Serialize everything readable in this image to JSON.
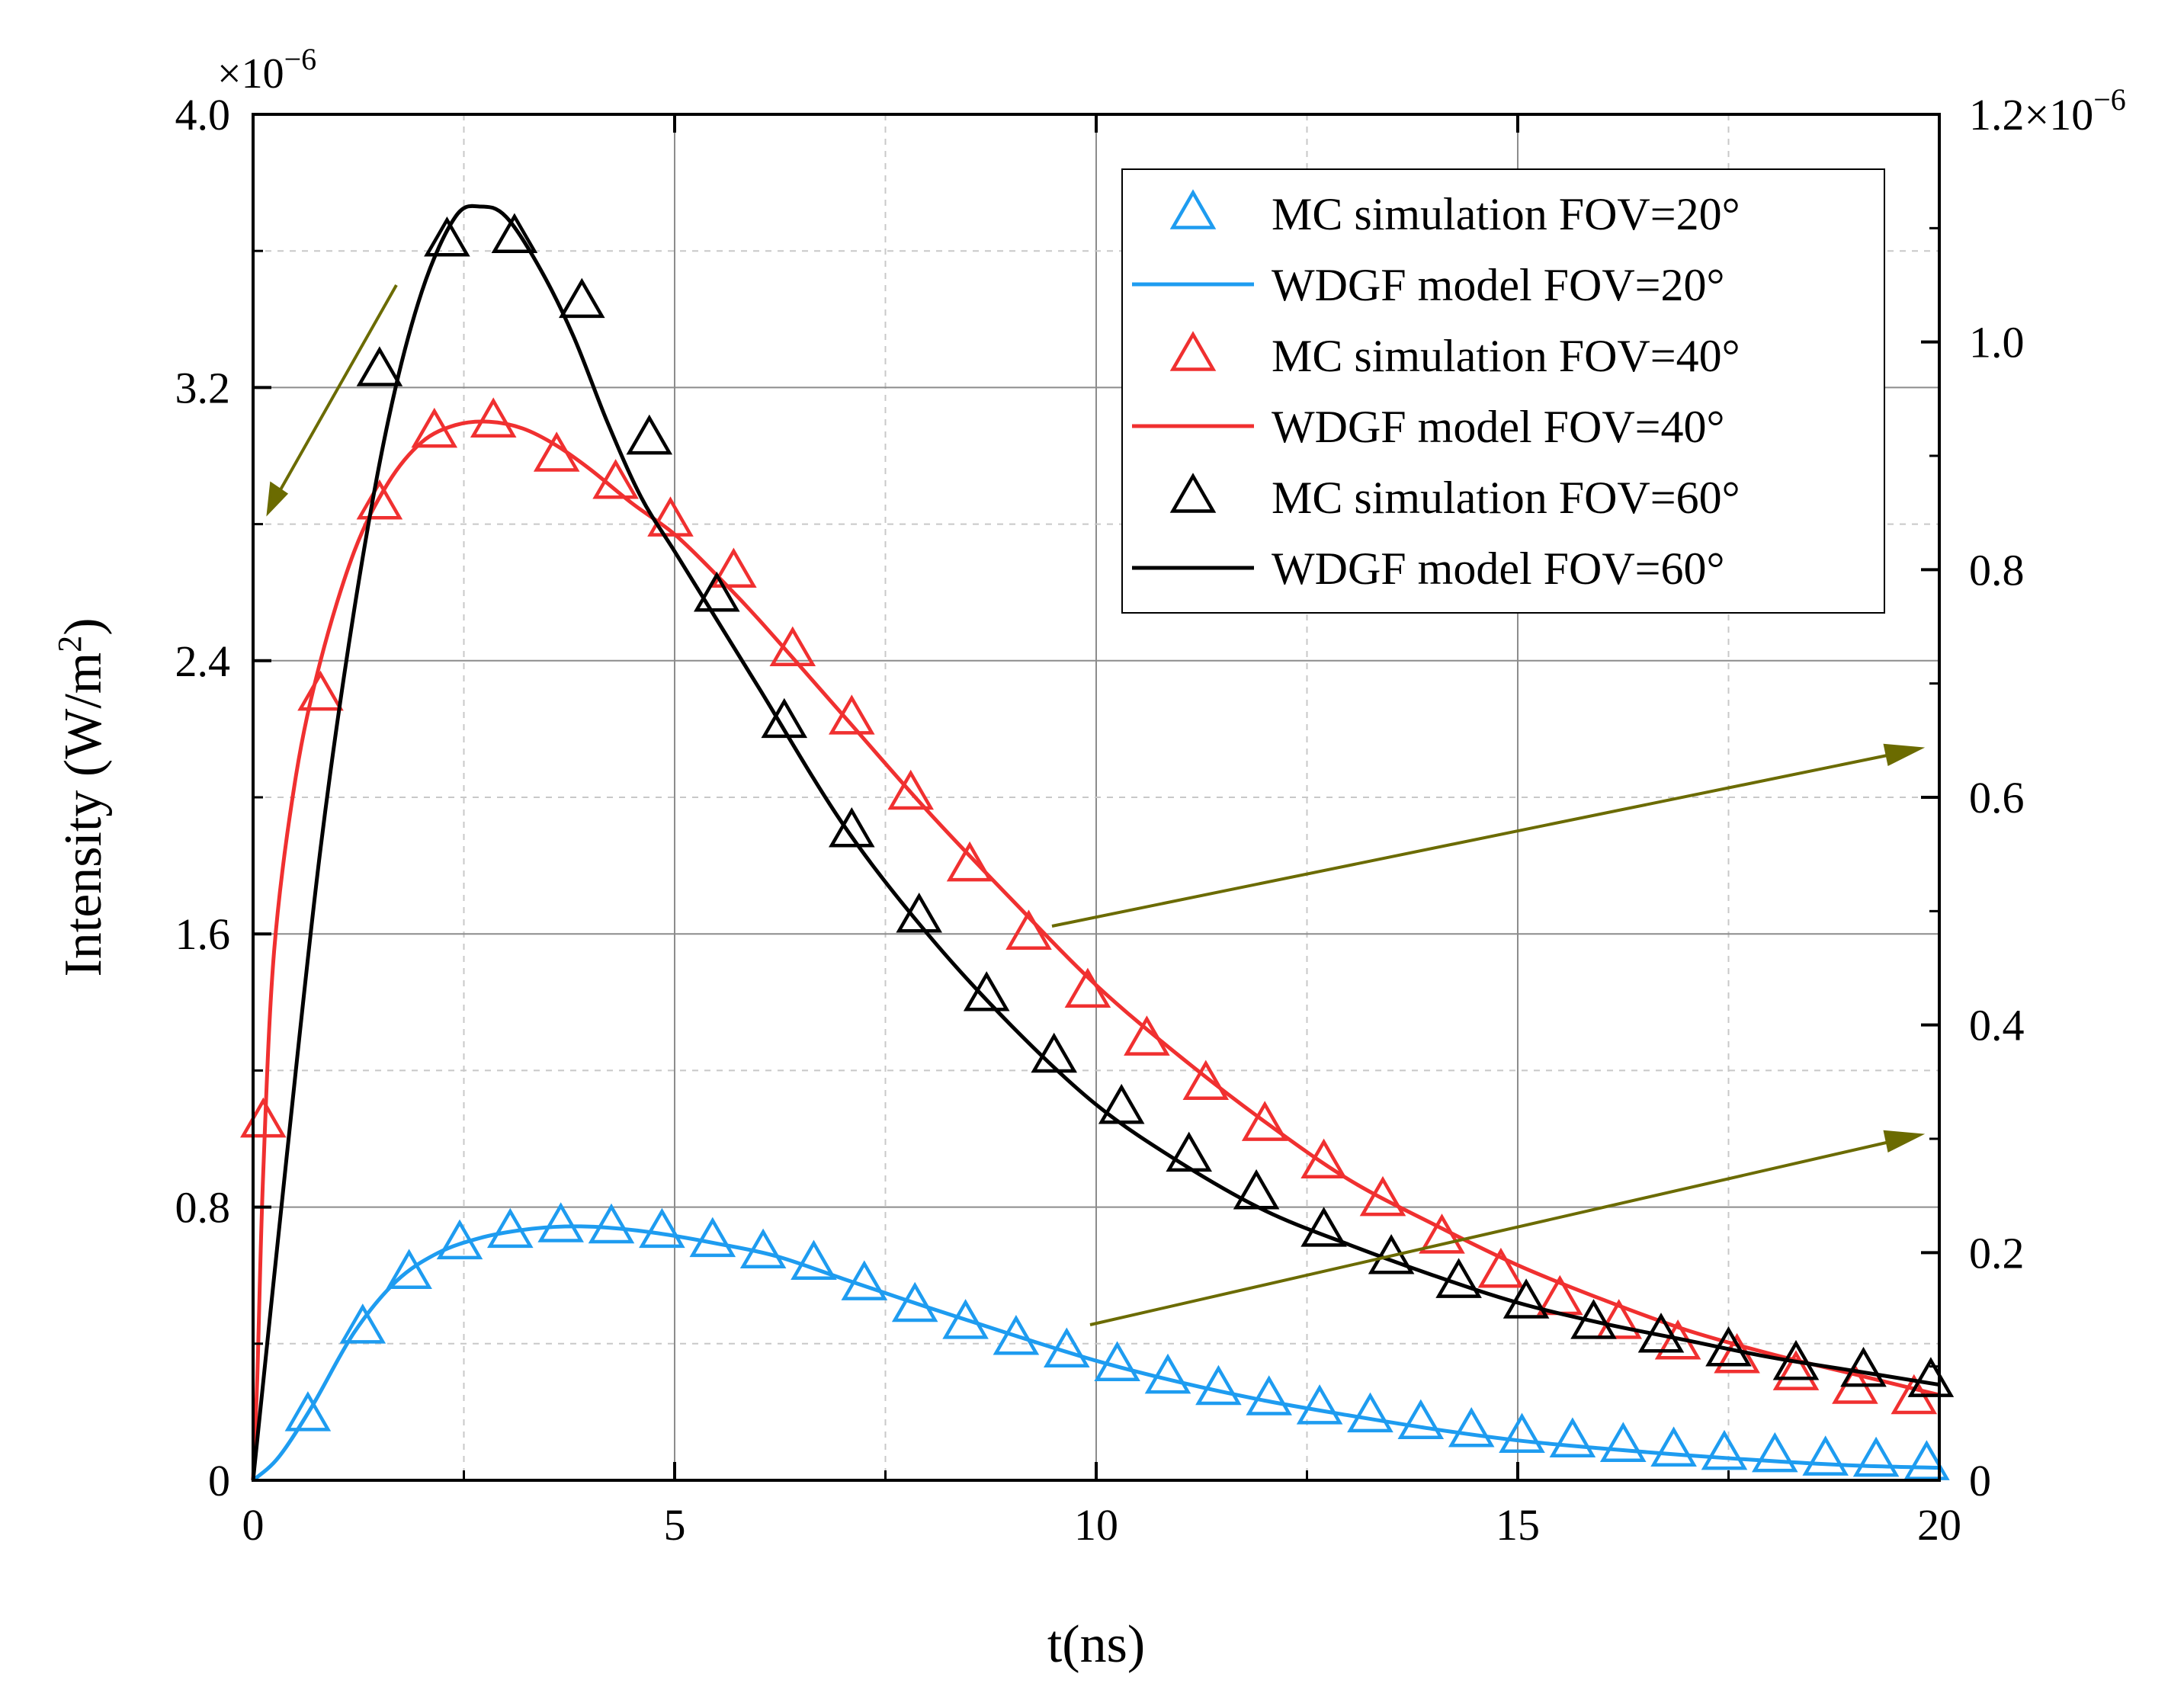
{
  "chart_data": {
    "type": "line",
    "xlabel": "t(ns)",
    "ylabel_prefix": "Intensity (W/m",
    "ylabel_sup": "2",
    "ylabel_suffix": ")",
    "xlim": [
      0,
      20
    ],
    "ylim": [
      0,
      4.0
    ],
    "y2lim": [
      0,
      1.2
    ],
    "x_ticks": [
      0,
      5,
      10,
      15,
      20
    ],
    "x_tick_labels": [
      "0",
      "5",
      "10",
      "15",
      "20"
    ],
    "y_ticks": [
      0,
      0.8,
      1.6,
      2.4,
      3.2,
      4.0
    ],
    "y_tick_labels": [
      "0",
      "0.8",
      "1.6",
      "2.4",
      "3.2",
      "4.0"
    ],
    "y2_ticks": [
      0,
      0.2,
      0.4,
      0.6,
      0.8,
      1.0,
      1.2
    ],
    "y2_tick_labels": [
      "0",
      "0.2",
      "0.4",
      "0.6",
      "0.8",
      "1.0",
      "1.2"
    ],
    "y_multiplier": "×10",
    "y_multiplier_exp": "−6",
    "y2_top_label": "1.2×10",
    "y2_top_exp": "−6",
    "grid": true,
    "legend_position": "top-right",
    "legend": [
      "MC simulation FOV=20°",
      "WDGF model FOV=20°",
      "MC simulation FOV=40°",
      "WDGF model FOV=40°",
      "MC simulation FOV=60°",
      "WDGF model FOV=60°"
    ],
    "colors": {
      "fov20": "#1e9cf0",
      "fov40": "#f03030",
      "fov60": "#000000",
      "arrow": "#6b6b00"
    },
    "series": [
      {
        "name": "WDGF model FOV=20°",
        "kind": "line",
        "axis": "right",
        "color": "#1e9cf0",
        "x": [
          0,
          0.3,
          0.7,
          1.2,
          1.7,
          2.2,
          2.7,
          3.2,
          3.7,
          4.2,
          4.8,
          5.5,
          6.2,
          7,
          8,
          9,
          10,
          11,
          12,
          13,
          14,
          15,
          16,
          17,
          18,
          19,
          20
        ],
        "y": [
          0,
          0.02,
          0.065,
          0.13,
          0.175,
          0.2,
          0.213,
          0.22,
          0.223,
          0.222,
          0.217,
          0.208,
          0.197,
          0.177,
          0.152,
          0.128,
          0.105,
          0.086,
          0.07,
          0.057,
          0.045,
          0.035,
          0.028,
          0.022,
          0.017,
          0.013,
          0.011
        ]
      },
      {
        "name": "MC simulation FOV=20°",
        "kind": "markers",
        "axis": "right",
        "color": "#1e9cf0",
        "x": [
          0.65,
          1.3,
          1.85,
          2.45,
          3.05,
          3.65,
          4.25,
          4.85,
          5.45,
          6.05,
          6.65,
          7.25,
          7.85,
          8.45,
          9.05,
          9.65,
          10.25,
          10.85,
          11.45,
          12.05,
          12.65,
          13.25,
          13.85,
          14.45,
          15.05,
          15.65,
          16.25,
          16.85,
          17.45,
          18.05,
          18.65,
          19.25,
          19.85
        ],
        "y": [
          0.057,
          0.134,
          0.182,
          0.208,
          0.218,
          0.223,
          0.222,
          0.218,
          0.21,
          0.2,
          0.19,
          0.172,
          0.153,
          0.138,
          0.124,
          0.113,
          0.101,
          0.09,
          0.08,
          0.071,
          0.063,
          0.056,
          0.05,
          0.043,
          0.038,
          0.034,
          0.03,
          0.026,
          0.023,
          0.021,
          0.018,
          0.017,
          0.014
        ]
      },
      {
        "name": "WDGF model FOV=40°",
        "kind": "line",
        "axis": "left",
        "color": "#f03030",
        "x": [
          0,
          0.05,
          0.12,
          0.25,
          0.5,
          0.8,
          1.2,
          1.6,
          2,
          2.4,
          2.8,
          3.2,
          3.6,
          4,
          4.5,
          5,
          5.5,
          6,
          7,
          8,
          9,
          10,
          11,
          12,
          13,
          14,
          15,
          16,
          17,
          18,
          19,
          20
        ],
        "y": [
          0,
          0.3,
          0.9,
          1.55,
          2.05,
          2.4,
          2.72,
          2.92,
          3.04,
          3.09,
          3.1,
          3.08,
          3.03,
          2.96,
          2.86,
          2.77,
          2.65,
          2.52,
          2.24,
          1.96,
          1.7,
          1.45,
          1.24,
          1.05,
          0.88,
          0.75,
          0.63,
          0.53,
          0.44,
          0.37,
          0.31,
          0.25
        ]
      },
      {
        "name": "MC simulation FOV=40°",
        "kind": "markers",
        "axis": "left",
        "color": "#f03030",
        "x": [
          0.12,
          0.8,
          1.5,
          2.15,
          2.85,
          3.6,
          4.3,
          4.95,
          5.7,
          6.4,
          7.1,
          7.8,
          8.5,
          9.2,
          9.9,
          10.6,
          11.3,
          12,
          12.7,
          13.4,
          14.1,
          14.8,
          15.5,
          16.2,
          16.9,
          17.6,
          18.3,
          19,
          19.7
        ],
        "y": [
          1.05,
          2.3,
          2.86,
          3.07,
          3.1,
          3.0,
          2.92,
          2.81,
          2.66,
          2.43,
          2.23,
          2.01,
          1.8,
          1.6,
          1.43,
          1.29,
          1.16,
          1.04,
          0.93,
          0.82,
          0.71,
          0.61,
          0.53,
          0.46,
          0.4,
          0.36,
          0.31,
          0.27,
          0.24
        ]
      },
      {
        "name": "WDGF model FOV=60°",
        "kind": "line",
        "axis": "left",
        "color": "#000000",
        "x": [
          0,
          0.4,
          0.8,
          1.2,
          1.6,
          2,
          2.4,
          2.7,
          3,
          3.4,
          3.8,
          4.2,
          4.6,
          5,
          5.5,
          6,
          7,
          8,
          9,
          10,
          11,
          12,
          13,
          14,
          15,
          16,
          17,
          18,
          19,
          20
        ],
        "y": [
          0,
          0.95,
          1.85,
          2.55,
          3.1,
          3.48,
          3.7,
          3.73,
          3.7,
          3.55,
          3.35,
          3.1,
          2.88,
          2.72,
          2.52,
          2.32,
          1.92,
          1.6,
          1.33,
          1.1,
          0.93,
          0.79,
          0.69,
          0.6,
          0.52,
          0.46,
          0.41,
          0.36,
          0.32,
          0.28
        ]
      },
      {
        "name": "MC simulation FOV=60°",
        "kind": "markers",
        "axis": "left",
        "color": "#000000",
        "x": [
          1.5,
          2.3,
          3.1,
          3.9,
          4.7,
          5.5,
          6.3,
          7.1,
          7.9,
          8.7,
          9.5,
          10.3,
          11.1,
          11.9,
          12.7,
          13.5,
          14.3,
          15.1,
          15.9,
          16.7,
          17.5,
          18.3,
          19.1,
          19.9
        ],
        "y": [
          3.25,
          3.63,
          3.64,
          3.45,
          3.05,
          2.59,
          2.22,
          1.9,
          1.65,
          1.42,
          1.24,
          1.09,
          0.95,
          0.84,
          0.73,
          0.65,
          0.58,
          0.52,
          0.46,
          0.42,
          0.38,
          0.34,
          0.32,
          0.29
        ]
      }
    ]
  }
}
